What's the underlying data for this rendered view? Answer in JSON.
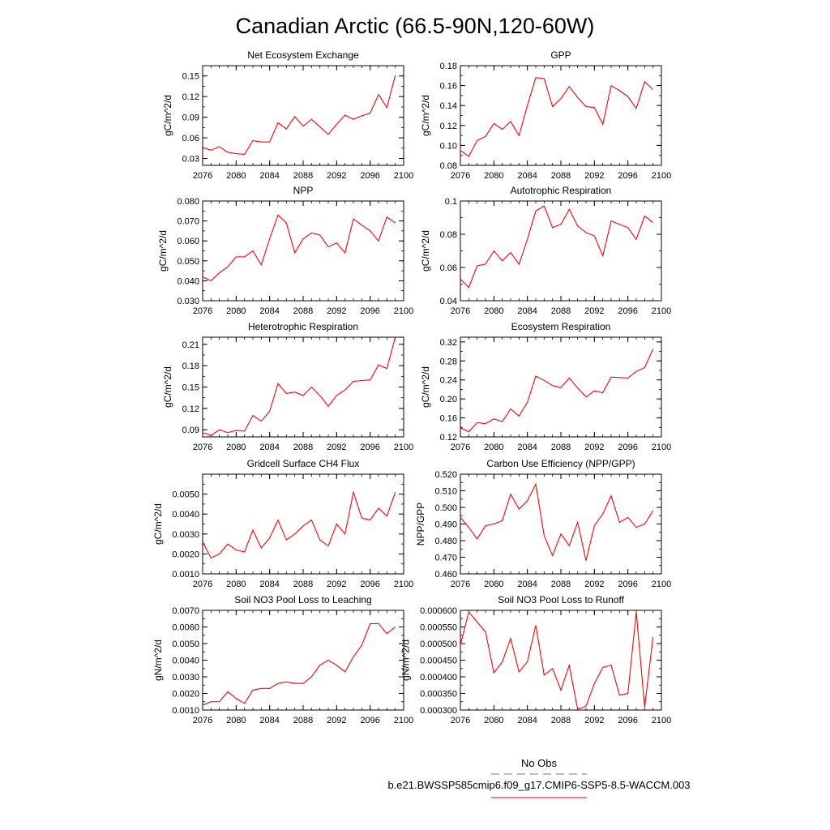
{
  "title": "Canadian Arctic (66.5-90N,120-60W)",
  "colors": {
    "model": "#ff0000",
    "obs": "#6e6ed8"
  },
  "legend": {
    "obs_label": "No Obs",
    "model_label": "b.e21.BWSSP585cmip6.f09_g17.CMIP6-SSP5-8.5-WACCM.003"
  },
  "chart_data": [
    {
      "type": "line",
      "title": "Net Ecosystem Exchange",
      "ylabel": "gC/m^2/d",
      "xlim": [
        2076,
        2100
      ],
      "ylim": [
        0.02,
        0.165
      ],
      "xticks": [
        "2076",
        "2080",
        "2084",
        "2088",
        "2092",
        "2096",
        "2100"
      ],
      "yticks": [
        "0.03",
        "0.06",
        "0.09",
        "0.12",
        "0.15"
      ],
      "x": [
        2076,
        2077,
        2078,
        2079,
        2080,
        2081,
        2082,
        2083,
        2084,
        2085,
        2086,
        2087,
        2088,
        2089,
        2090,
        2091,
        2092,
        2093,
        2094,
        2095,
        2096,
        2097,
        2098,
        2099
      ],
      "series": [
        {
          "values": [
            0.046,
            0.042,
            0.047,
            0.039,
            0.037,
            0.036,
            0.056,
            0.054,
            0.054,
            0.082,
            0.073,
            0.091,
            0.077,
            0.087,
            0.076,
            0.065,
            0.08,
            0.093,
            0.087,
            0.092,
            0.096,
            0.123,
            0.104,
            0.151
          ]
        }
      ]
    },
    {
      "type": "line",
      "title": "GPP",
      "ylabel": "gC/m^2/d",
      "xlim": [
        2076,
        2100
      ],
      "ylim": [
        0.08,
        0.18
      ],
      "xticks": [
        "2076",
        "2080",
        "2084",
        "2088",
        "2092",
        "2096",
        "2100"
      ],
      "yticks": [
        "0.08",
        "0.10",
        "0.12",
        "0.14",
        "0.16",
        "0.18"
      ],
      "x": [
        2076,
        2077,
        2078,
        2079,
        2080,
        2081,
        2082,
        2083,
        2084,
        2085,
        2086,
        2087,
        2088,
        2089,
        2090,
        2091,
        2092,
        2093,
        2094,
        2095,
        2096,
        2097,
        2098,
        2099
      ],
      "series": [
        {
          "values": [
            0.095,
            0.089,
            0.105,
            0.109,
            0.122,
            0.116,
            0.124,
            0.11,
            0.14,
            0.168,
            0.167,
            0.139,
            0.147,
            0.159,
            0.148,
            0.139,
            0.138,
            0.121,
            0.16,
            0.155,
            0.149,
            0.137,
            0.164,
            0.156
          ]
        }
      ]
    },
    {
      "type": "line",
      "title": "NPP",
      "ylabel": "gC/m^2/d",
      "xlim": [
        2076,
        2100
      ],
      "ylim": [
        0.03,
        0.08
      ],
      "xticks": [
        "2076",
        "2080",
        "2084",
        "2088",
        "2092",
        "2096",
        "2100"
      ],
      "yticks": [
        "0.030",
        "0.040",
        "0.050",
        "0.060",
        "0.070",
        "0.080"
      ],
      "x": [
        2076,
        2077,
        2078,
        2079,
        2080,
        2081,
        2082,
        2083,
        2084,
        2085,
        2086,
        2087,
        2088,
        2089,
        2090,
        2091,
        2092,
        2093,
        2094,
        2095,
        2096,
        2097,
        2098,
        2099
      ],
      "series": [
        {
          "values": [
            0.042,
            0.04,
            0.044,
            0.047,
            0.052,
            0.052,
            0.055,
            0.048,
            0.061,
            0.073,
            0.069,
            0.054,
            0.061,
            0.064,
            0.063,
            0.057,
            0.059,
            0.054,
            0.071,
            0.068,
            0.065,
            0.06,
            0.072,
            0.069
          ]
        }
      ]
    },
    {
      "type": "line",
      "title": "Autotrophic Respiration",
      "ylabel": "gC/m^2/d",
      "xlim": [
        2076,
        2100
      ],
      "ylim": [
        0.04,
        0.1
      ],
      "xticks": [
        "2076",
        "2080",
        "2084",
        "2088",
        "2092",
        "2096",
        "2100"
      ],
      "yticks": [
        "0.04",
        "0.06",
        "0.08",
        "0.1"
      ],
      "x": [
        2076,
        2077,
        2078,
        2079,
        2080,
        2081,
        2082,
        2083,
        2084,
        2085,
        2086,
        2087,
        2088,
        2089,
        2090,
        2091,
        2092,
        2093,
        2094,
        2095,
        2096,
        2097,
        2098,
        2099
      ],
      "series": [
        {
          "values": [
            0.053,
            0.048,
            0.061,
            0.062,
            0.07,
            0.064,
            0.069,
            0.062,
            0.077,
            0.094,
            0.097,
            0.084,
            0.086,
            0.095,
            0.085,
            0.081,
            0.079,
            0.067,
            0.088,
            0.086,
            0.084,
            0.077,
            0.091,
            0.087
          ]
        }
      ]
    },
    {
      "type": "line",
      "title": "Heterotrophic Respiration",
      "ylabel": "gC/m^2/d",
      "xlim": [
        2076,
        2100
      ],
      "ylim": [
        0.08,
        0.22
      ],
      "xticks": [
        "2076",
        "2080",
        "2084",
        "2088",
        "2092",
        "2096",
        "2100"
      ],
      "yticks": [
        "0.09",
        "0.12",
        "0.15",
        "0.18",
        "0.21"
      ],
      "x": [
        2076,
        2077,
        2078,
        2079,
        2080,
        2081,
        2082,
        2083,
        2084,
        2085,
        2086,
        2087,
        2088,
        2089,
        2090,
        2091,
        2092,
        2093,
        2094,
        2095,
        2096,
        2097,
        2098,
        2099
      ],
      "series": [
        {
          "values": [
            0.086,
            0.082,
            0.09,
            0.086,
            0.089,
            0.088,
            0.11,
            0.102,
            0.116,
            0.155,
            0.141,
            0.143,
            0.138,
            0.15,
            0.138,
            0.123,
            0.138,
            0.146,
            0.158,
            0.159,
            0.16,
            0.181,
            0.176,
            0.22
          ]
        }
      ]
    },
    {
      "type": "line",
      "title": "Ecosystem Respiration",
      "ylabel": "gC/m^2/d",
      "xlim": [
        2076,
        2100
      ],
      "ylim": [
        0.12,
        0.33
      ],
      "xticks": [
        "2076",
        "2080",
        "2084",
        "2088",
        "2092",
        "2096",
        "2100"
      ],
      "yticks": [
        "0.12",
        "0.16",
        "0.20",
        "0.24",
        "0.28",
        "0.32"
      ],
      "x": [
        2076,
        2077,
        2078,
        2079,
        2080,
        2081,
        2082,
        2083,
        2084,
        2085,
        2086,
        2087,
        2088,
        2089,
        2090,
        2091,
        2092,
        2093,
        2094,
        2095,
        2096,
        2097,
        2098,
        2099
      ],
      "series": [
        {
          "values": [
            0.139,
            0.131,
            0.15,
            0.148,
            0.158,
            0.152,
            0.179,
            0.164,
            0.193,
            0.248,
            0.239,
            0.228,
            0.224,
            0.244,
            0.223,
            0.204,
            0.217,
            0.213,
            0.246,
            0.245,
            0.244,
            0.258,
            0.266,
            0.305
          ]
        }
      ]
    },
    {
      "type": "line",
      "title": "Gridcell Surface CH4 Flux",
      "ylabel": "gC/m^2/d",
      "xlim": [
        2076,
        2100
      ],
      "ylim": [
        0.001,
        0.006
      ],
      "xticks": [
        "2076",
        "2080",
        "2084",
        "2088",
        "2092",
        "2096",
        "2100"
      ],
      "yticks": [
        "0.0010",
        "0.0020",
        "0.0030",
        "0.0040",
        "0.0050"
      ],
      "x": [
        2076,
        2077,
        2078,
        2079,
        2080,
        2081,
        2082,
        2083,
        2084,
        2085,
        2086,
        2087,
        2088,
        2089,
        2090,
        2091,
        2092,
        2093,
        2094,
        2095,
        2096,
        2097,
        2098,
        2099
      ],
      "series": [
        {
          "values": [
            0.0026,
            0.0018,
            0.002,
            0.0025,
            0.0022,
            0.0021,
            0.0032,
            0.0023,
            0.0028,
            0.0037,
            0.0027,
            0.003,
            0.0034,
            0.0037,
            0.0027,
            0.0024,
            0.0035,
            0.003,
            0.0051,
            0.0038,
            0.0037,
            0.0043,
            0.0039,
            0.0051
          ]
        }
      ]
    },
    {
      "type": "line",
      "title": "Carbon Use Efficiency (NPP/GPP)",
      "ylabel": "NPP/GPP",
      "xlim": [
        2076,
        2100
      ],
      "ylim": [
        0.46,
        0.52
      ],
      "xticks": [
        "2076",
        "2080",
        "2084",
        "2088",
        "2092",
        "2096",
        "2100"
      ],
      "yticks": [
        "0.460",
        "0.470",
        "0.480",
        "0.490",
        "0.500",
        "0.510",
        "0.520"
      ],
      "x": [
        2076,
        2077,
        2078,
        2079,
        2080,
        2081,
        2082,
        2083,
        2084,
        2085,
        2086,
        2087,
        2088,
        2089,
        2090,
        2091,
        2092,
        2093,
        2094,
        2095,
        2096,
        2097,
        2098,
        2099
      ],
      "series": [
        {
          "values": [
            0.494,
            0.488,
            0.481,
            0.489,
            0.49,
            0.492,
            0.508,
            0.499,
            0.504,
            0.514,
            0.483,
            0.471,
            0.484,
            0.477,
            0.491,
            0.468,
            0.489,
            0.496,
            0.507,
            0.491,
            0.494,
            0.488,
            0.49,
            0.498
          ]
        }
      ]
    },
    {
      "type": "line",
      "title": "Soil NO3 Pool Loss to Leaching",
      "ylabel": "gN/m^2/d",
      "xlim": [
        2076,
        2100
      ],
      "ylim": [
        0.001,
        0.007
      ],
      "xticks": [
        "2076",
        "2080",
        "2084",
        "2088",
        "2092",
        "2096",
        "2100"
      ],
      "yticks": [
        "0.0010",
        "0.0020",
        "0.0030",
        "0.0040",
        "0.0050",
        "0.0060",
        "0.0070"
      ],
      "x": [
        2076,
        2077,
        2078,
        2079,
        2080,
        2081,
        2082,
        2083,
        2084,
        2085,
        2086,
        2087,
        2088,
        2089,
        2090,
        2091,
        2092,
        2093,
        2094,
        2095,
        2096,
        2097,
        2098,
        2099
      ],
      "series": [
        {
          "values": [
            0.0013,
            0.0015,
            0.0015,
            0.0021,
            0.0017,
            0.0014,
            0.0022,
            0.0023,
            0.0023,
            0.0026,
            0.0027,
            0.0026,
            0.0026,
            0.003,
            0.0037,
            0.004,
            0.0037,
            0.0033,
            0.0042,
            0.0049,
            0.0062,
            0.0062,
            0.0056,
            0.006
          ]
        }
      ]
    },
    {
      "type": "line",
      "title": "Soil NO3 Pool Loss to Runoff",
      "ylabel": "gN/m^2/d",
      "xlim": [
        2076,
        2100
      ],
      "ylim": [
        0.0003,
        0.0006
      ],
      "xticks": [
        "2076",
        "2080",
        "2084",
        "2088",
        "2092",
        "2096",
        "2100"
      ],
      "yticks": [
        "0.000300",
        "0.000350",
        "0.000400",
        "0.000450",
        "0.000500",
        "0.000550",
        "0.000600"
      ],
      "x": [
        2076,
        2077,
        2078,
        2079,
        2080,
        2081,
        2082,
        2083,
        2084,
        2085,
        2086,
        2087,
        2088,
        2089,
        2090,
        2091,
        2092,
        2093,
        2094,
        2095,
        2096,
        2097,
        2098,
        2099
      ],
      "series": [
        {
          "values": [
            0.000495,
            0.000595,
            0.000565,
            0.000535,
            0.000412,
            0.000445,
            0.000515,
            0.000415,
            0.000445,
            0.000555,
            0.000405,
            0.000425,
            0.00036,
            0.000435,
            0.000302,
            0.000312,
            0.00038,
            0.000428,
            0.000435,
            0.000345,
            0.00035,
            0.000595,
            0.000308,
            0.00052
          ]
        }
      ]
    }
  ]
}
